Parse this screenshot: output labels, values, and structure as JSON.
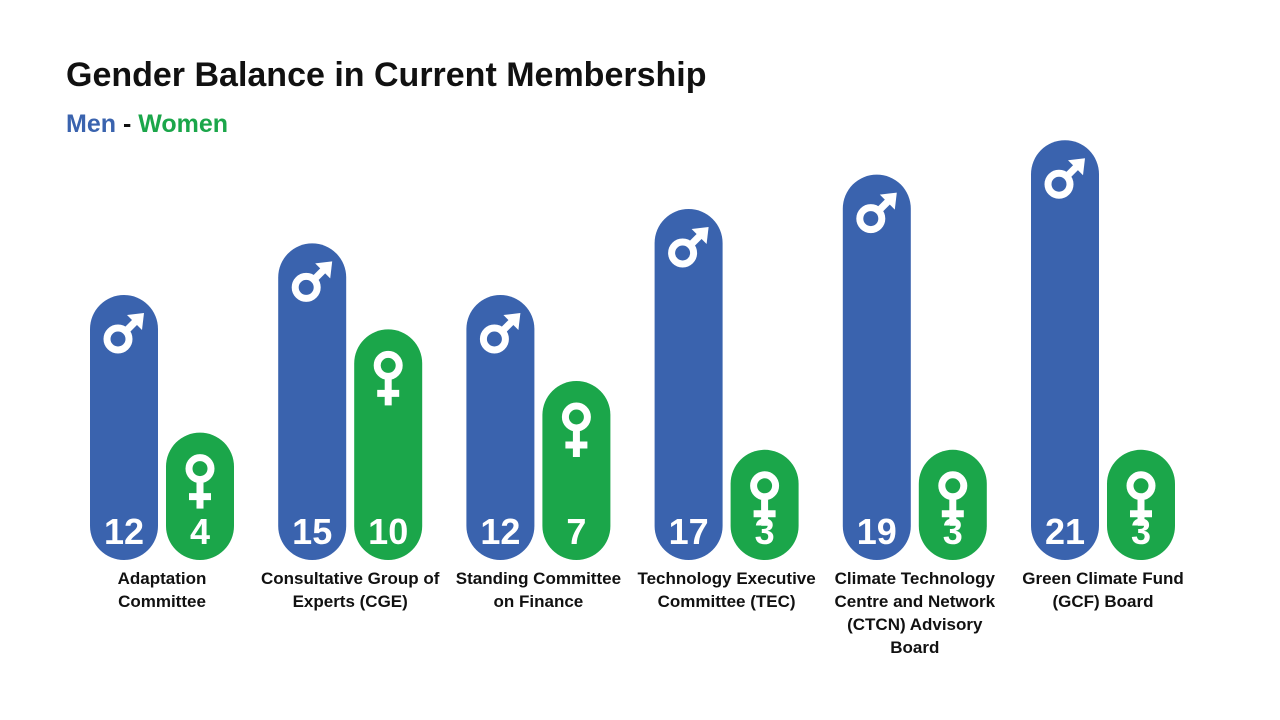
{
  "chart_data": {
    "type": "bar",
    "title": "Gender Balance in Current Membership",
    "legend_separator": "-",
    "categories": [
      "Adaptation Committee",
      "Consultative Group of Experts (CGE)",
      "Standing Committee on Finance",
      "Technology Executive Committee (TEC)",
      "Climate Technology Centre and Network (CTCN) Advisory Board",
      "Green Climate Fund (GCF) Board"
    ],
    "series": [
      {
        "name": "Men",
        "color": "#3a63ae",
        "values": [
          12,
          15,
          12,
          17,
          19,
          21
        ]
      },
      {
        "name": "Women",
        "color": "#1ba64a",
        "values": [
          4,
          10,
          7,
          3,
          3,
          3
        ]
      }
    ]
  }
}
